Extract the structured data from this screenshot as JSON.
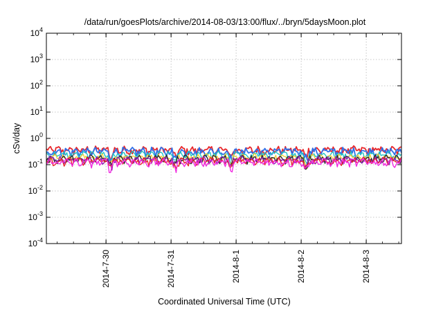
{
  "chart_data": {
    "type": "line",
    "title": "/data/run/goesPlots/archive/2014-08-03/13:00/flux/../bryn/5daysMoon.plot",
    "xlabel": "Coordinated Universal Time (UTC)",
    "ylabel": "cSv/day",
    "yscale": "log",
    "ylim": [
      0.0001,
      10000
    ],
    "xlim": [
      "2014-07-29T02:00",
      "2014-08-03T13:00"
    ],
    "grid": true,
    "y_ticks": [
      {
        "base": "10",
        "exp": "-4"
      },
      {
        "base": "10",
        "exp": "-3"
      },
      {
        "base": "10",
        "exp": "-2"
      },
      {
        "base": "10",
        "exp": "-1"
      },
      {
        "base": "10",
        "exp": "0"
      },
      {
        "base": "10",
        "exp": "1"
      },
      {
        "base": "10",
        "exp": "2"
      },
      {
        "base": "10",
        "exp": "3"
      },
      {
        "base": "10",
        "exp": "4"
      }
    ],
    "x_ticks": [
      "2014-7-30",
      "2014-7-31",
      "2014-8-1",
      "2014-8-2",
      "2014-8-3"
    ],
    "series": [
      {
        "color": "#e8262a",
        "level": 0.36,
        "spread": 0.09
      },
      {
        "color": "#2f6fe8",
        "level": 0.32,
        "spread": 0.08
      },
      {
        "color": "#23c4c4",
        "level": 0.24,
        "spread": 0.05
      },
      {
        "color": "#f0d23a",
        "level": 0.19,
        "spread": 0.04
      },
      {
        "color": "#2a2a2a",
        "level": 0.17,
        "spread": 0.035
      },
      {
        "color": "#8a1fb0",
        "level": 0.155,
        "spread": 0.03
      },
      {
        "color": "#e8262a",
        "level": 0.14,
        "spread": 0.03
      },
      {
        "color": "#f02ae0",
        "level": 0.125,
        "spread": 0.03
      }
    ]
  }
}
